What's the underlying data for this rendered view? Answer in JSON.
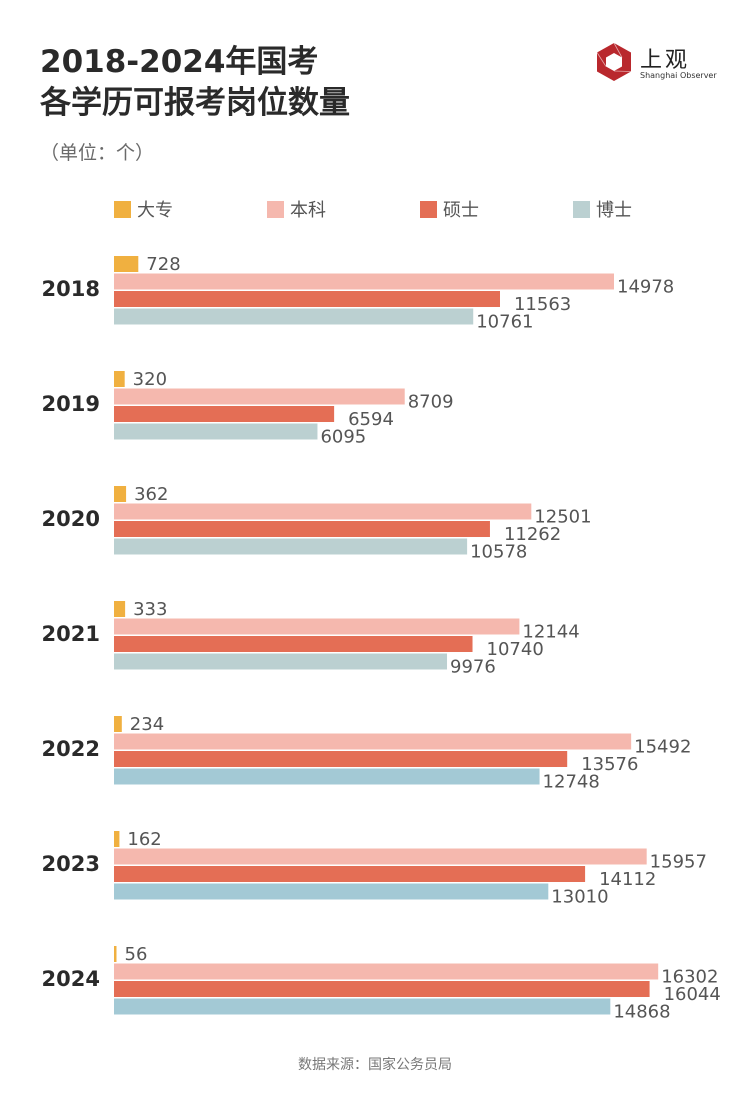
{
  "header": {
    "title_line1": "2018-2024年国考",
    "title_line2": "各学历可报考岗位数量",
    "unit": "（单位：个）"
  },
  "logo": {
    "name_cn": "上观",
    "name_en": "Shanghai Observer",
    "brand_color": "#b9282d"
  },
  "source": "数据来源：国家公务员局",
  "chart_data": {
    "type": "bar",
    "orientation": "horizontal",
    "title": "2018-2024年国考各学历可报考岗位数量",
    "subtitle": "（单位：个）",
    "xlabel": "",
    "ylabel": "",
    "grid": false,
    "legend_position": "top",
    "categories": [
      "2018",
      "2019",
      "2020",
      "2021",
      "2022",
      "2023",
      "2024"
    ],
    "xlim": [
      0,
      16302
    ],
    "series": [
      {
        "name": "大专",
        "color": "#f0b040",
        "values": [
          728,
          320,
          362,
          333,
          234,
          162,
          56
        ]
      },
      {
        "name": "本科",
        "color": "#f5b8ae",
        "values": [
          14978,
          8709,
          12501,
          12144,
          15492,
          15957,
          16302
        ]
      },
      {
        "name": "硕士",
        "color": "#e46e55",
        "values": [
          11563,
          6594,
          11262,
          10740,
          13576,
          14112,
          16044
        ]
      },
      {
        "name": "博士",
        "color": "#bbd0d1",
        "alt_color": "#a3c9d5",
        "alt_color_categories": [
          "2022",
          "2023",
          "2024"
        ],
        "values": [
          10761,
          6095,
          10578,
          9976,
          12748,
          13010,
          14868
        ]
      }
    ]
  }
}
